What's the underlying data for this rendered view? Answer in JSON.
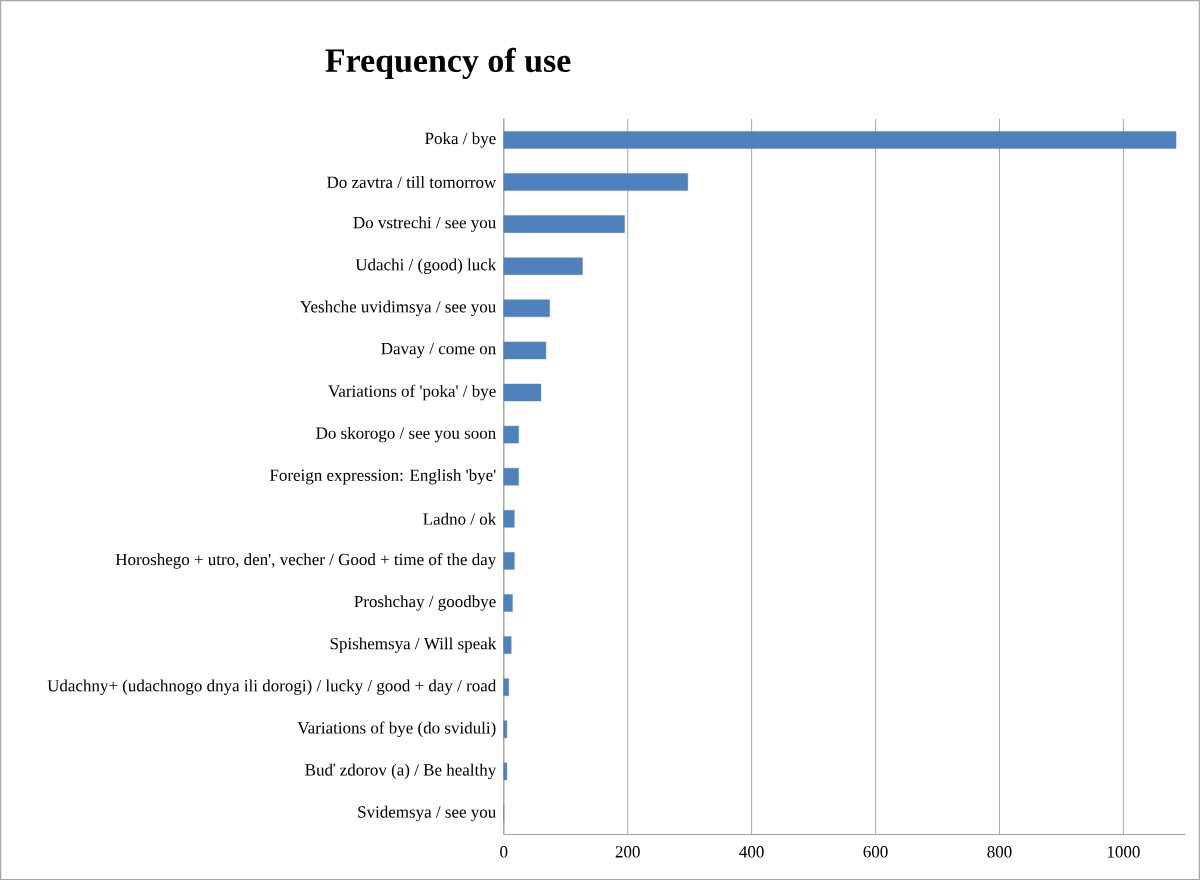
{
  "chart_data": {
    "type": "bar",
    "orientation": "horizontal",
    "title": "Frequency of use",
    "categories": [
      "Poka / bye",
      "Do zavtra / till tomorrow",
      "Do vstrechi / see you",
      "Udachi / (good) luck",
      "Yeshche uvidimsya / see you",
      "Davay / come on",
      "Variations of 'poka' / bye",
      "Do skorogo / see you soon",
      "Foreign expression: English 'bye'",
      "Ladno / ok",
      "Horoshego + utro, den', vecher / Good + time of the day",
      "Proshchay / goodbye",
      "Spishemsya / Will speak",
      "Udachny+ (udachnogo dnya ili dorogi) / lucky / good + day / road",
      "Variations of bye (do sviduli)",
      "Buď zdorov (a) / Be healthy",
      "Svidemsya / see you"
    ],
    "values": [
      1085,
      297,
      195,
      127,
      74,
      68,
      60,
      24,
      24,
      17,
      17,
      14,
      12,
      8,
      5,
      5,
      0
    ],
    "color": "#4f81bd",
    "xlim": [
      0,
      1100
    ],
    "xticks": [
      0,
      200,
      400,
      600,
      800,
      1000
    ],
    "grid": "x"
  }
}
